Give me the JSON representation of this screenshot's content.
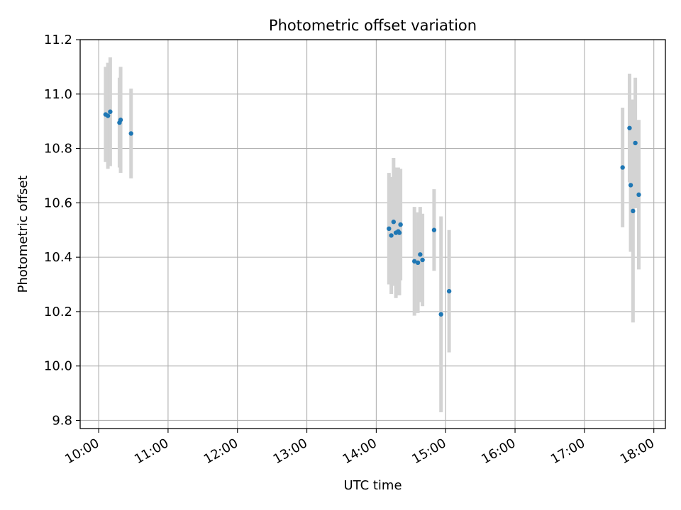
{
  "chart_data": {
    "type": "scatter",
    "title": "Photometric offset variation",
    "xlabel": "UTC time",
    "ylabel": "Photometric offset",
    "xlim": [
      "09:44",
      "18:10"
    ],
    "ylim": [
      9.77,
      11.2
    ],
    "x_ticks": [
      "10:00",
      "11:00",
      "12:00",
      "13:00",
      "14:00",
      "15:00",
      "16:00",
      "17:00",
      "18:00"
    ],
    "y_ticks": [
      "9.8",
      "10.0",
      "10.2",
      "10.4",
      "10.6",
      "10.8",
      "11.0",
      "11.2"
    ],
    "grid": true,
    "point_color": "#1f77b4",
    "errorbar_color": "#d3d3d3",
    "points": [
      {
        "time": "10:06",
        "y": 10.925,
        "err": 0.175
      },
      {
        "time": "10:08",
        "y": 10.92,
        "err": 0.195
      },
      {
        "time": "10:10",
        "y": 10.935,
        "err": 0.2
      },
      {
        "time": "10:18",
        "y": 10.895,
        "err": 0.165
      },
      {
        "time": "10:19",
        "y": 10.905,
        "err": 0.195
      },
      {
        "time": "10:28",
        "y": 10.855,
        "err": 0.165
      },
      {
        "time": "14:11",
        "y": 10.505,
        "err": 0.205
      },
      {
        "time": "14:13",
        "y": 10.48,
        "err": 0.215
      },
      {
        "time": "14:15",
        "y": 10.53,
        "err": 0.235
      },
      {
        "time": "14:17",
        "y": 10.49,
        "err": 0.24
      },
      {
        "time": "14:19",
        "y": 10.495,
        "err": 0.235
      },
      {
        "time": "14:20",
        "y": 10.49,
        "err": 0.23
      },
      {
        "time": "14:21",
        "y": 10.52,
        "err": 0.205
      },
      {
        "time": "14:33",
        "y": 10.385,
        "err": 0.2
      },
      {
        "time": "14:36",
        "y": 10.38,
        "err": 0.185
      },
      {
        "time": "14:38",
        "y": 10.41,
        "err": 0.175
      },
      {
        "time": "14:40",
        "y": 10.39,
        "err": 0.17
      },
      {
        "time": "14:50",
        "y": 10.5,
        "err": 0.15
      },
      {
        "time": "14:56",
        "y": 10.19,
        "err": 0.36
      },
      {
        "time": "15:03",
        "y": 10.275,
        "err": 0.225
      },
      {
        "time": "17:33",
        "y": 10.73,
        "err": 0.22
      },
      {
        "time": "17:39",
        "y": 10.875,
        "err": 0.2
      },
      {
        "time": "17:40",
        "y": 10.665,
        "err": 0.245
      },
      {
        "time": "17:42",
        "y": 10.57,
        "err": 0.41
      },
      {
        "time": "17:44",
        "y": 10.82,
        "err": 0.24
      },
      {
        "time": "17:47",
        "y": 10.63,
        "err": 0.275
      }
    ]
  }
}
